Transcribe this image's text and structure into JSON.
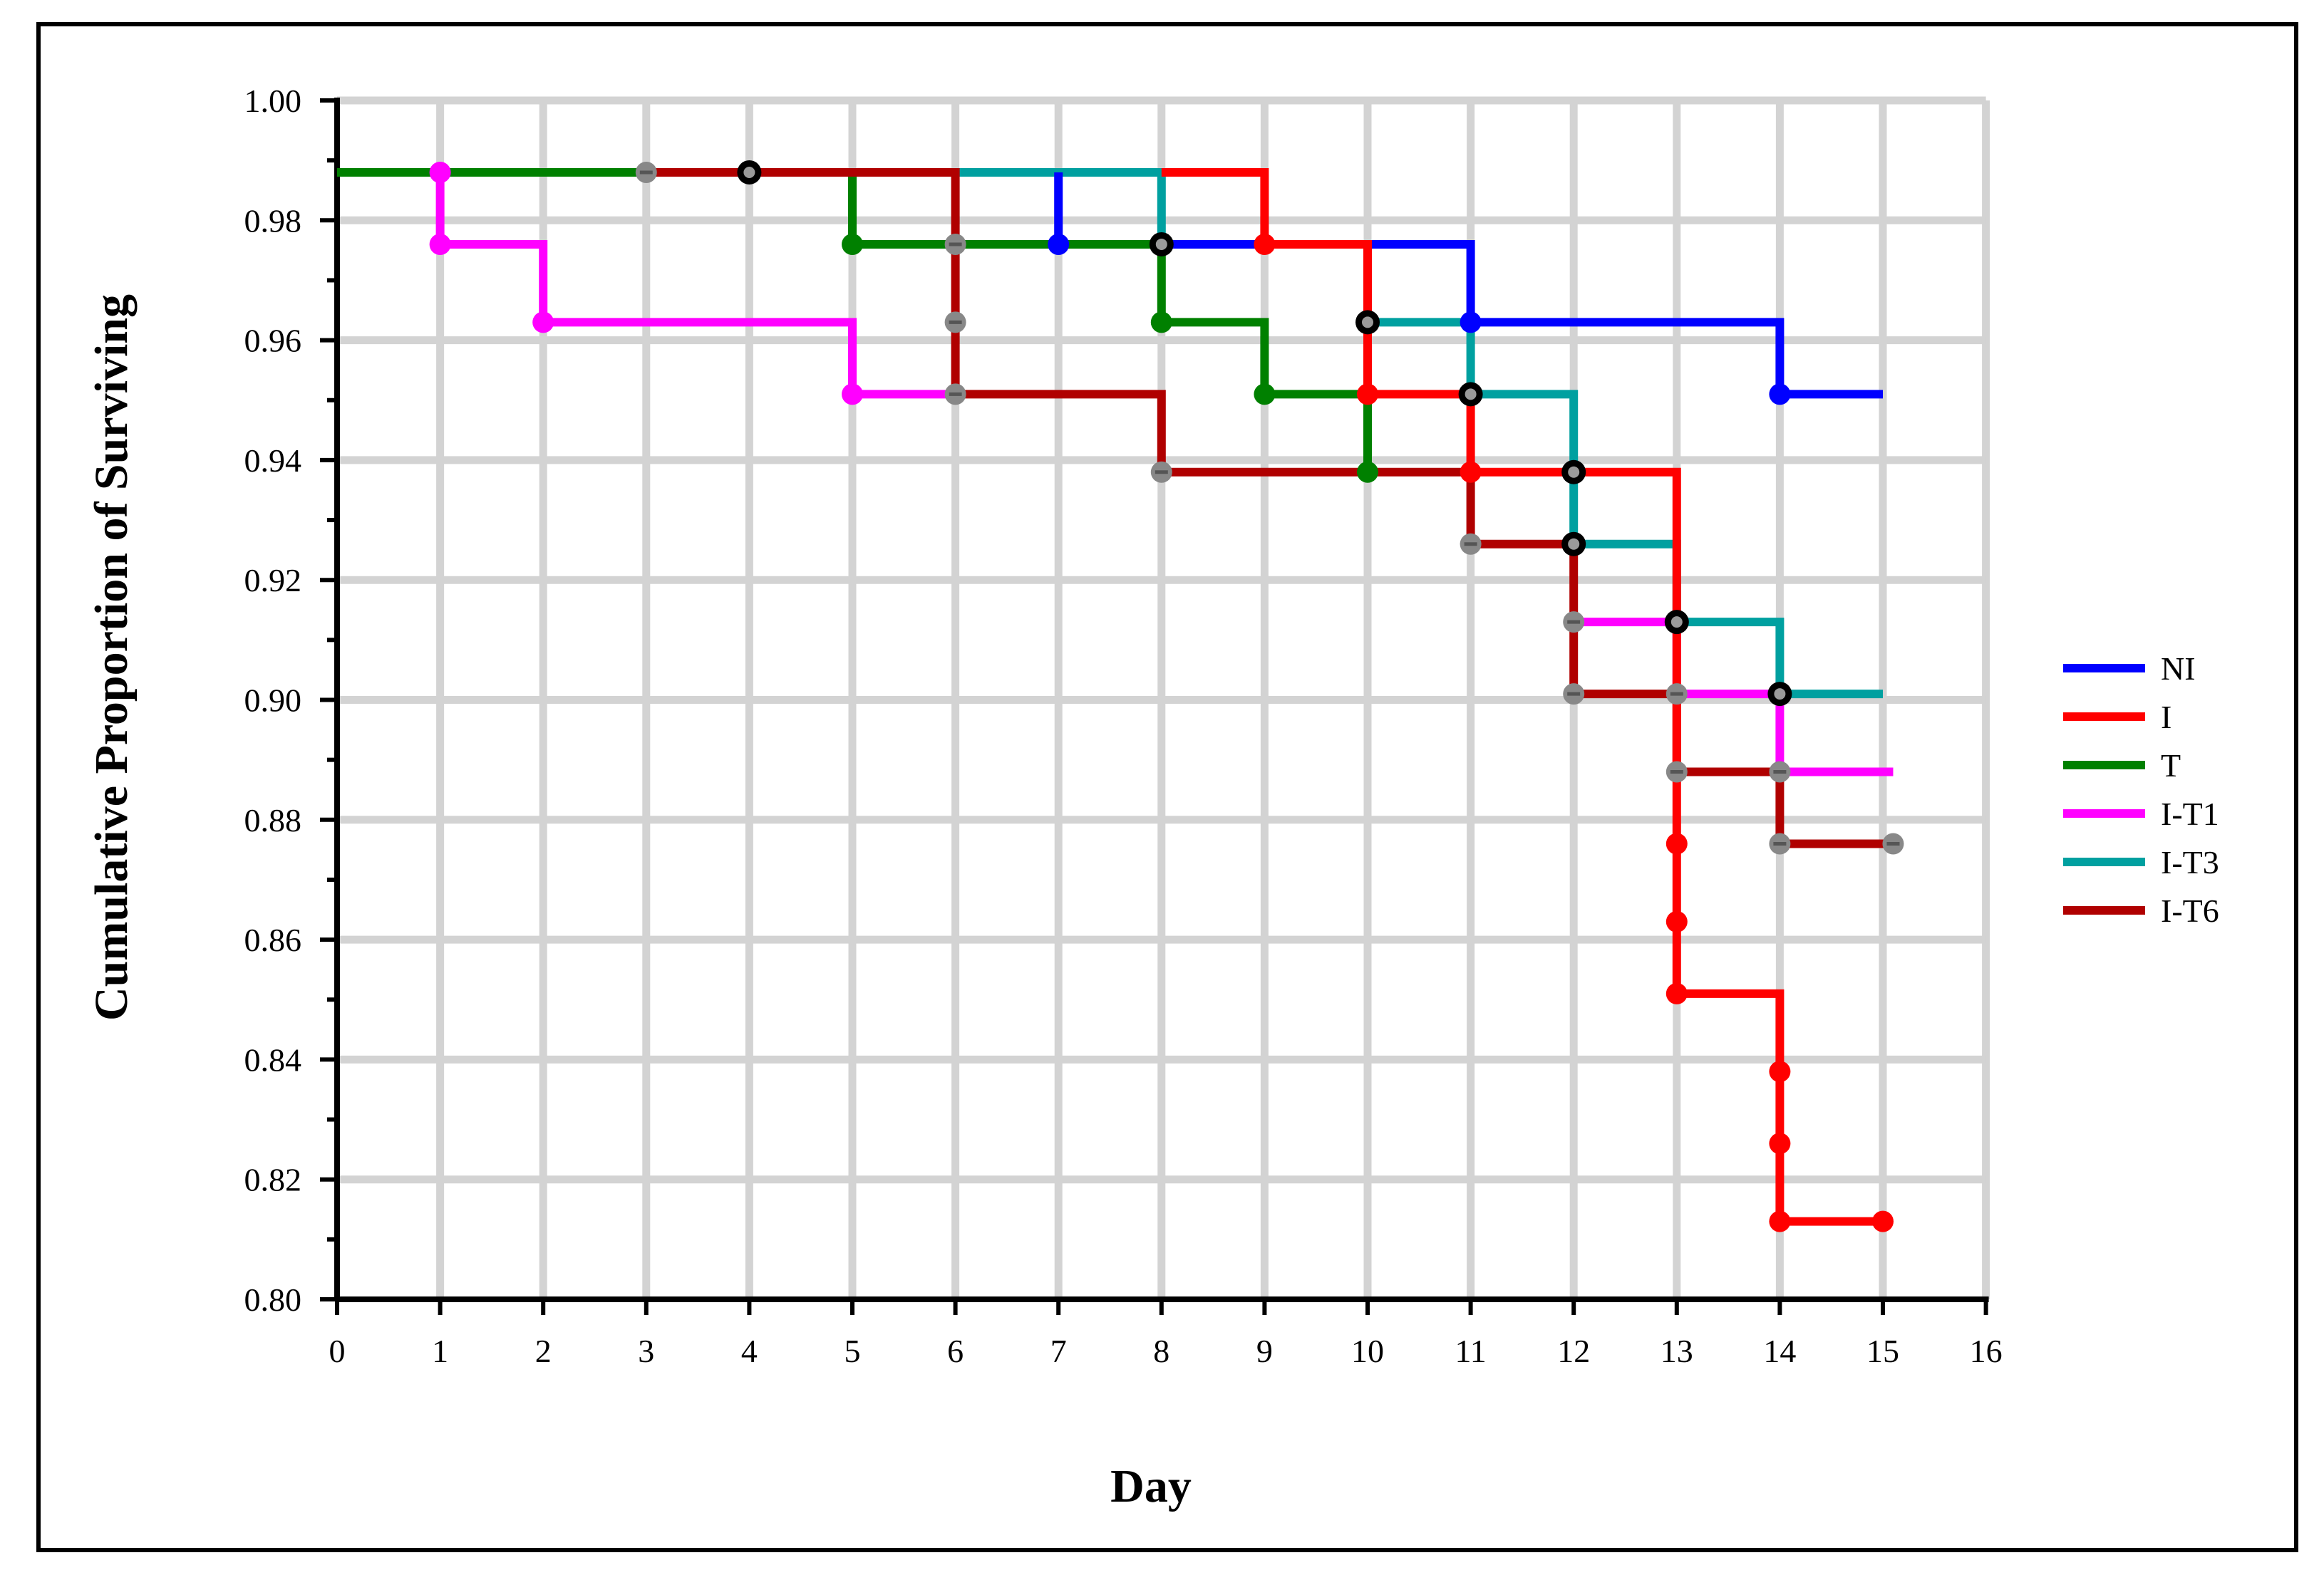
{
  "chart_data": {
    "type": "line",
    "subtype": "step (Kaplan-Meier survival)",
    "title": "",
    "xlabel": "Day",
    "ylabel": "Cumulative Proportion of Surviving",
    "xlim": [
      0,
      16
    ],
    "ylim": [
      0.8,
      1.0
    ],
    "x_ticks": [
      0,
      1,
      2,
      3,
      4,
      5,
      6,
      7,
      8,
      9,
      10,
      11,
      12,
      13,
      14,
      15,
      16
    ],
    "y_ticks": [
      "0.80",
      "0.82",
      "0.84",
      "0.86",
      "0.88",
      "0.90",
      "0.92",
      "0.94",
      "0.96",
      "0.98",
      "1.00"
    ],
    "grid": true,
    "legend_position": "right",
    "series": [
      {
        "name": "NI",
        "color": "#0000ff",
        "steps": [
          [
            7,
            0.988
          ],
          [
            7,
            0.976
          ],
          [
            11,
            0.963
          ],
          [
            14,
            0.951
          ],
          [
            15,
            0.951
          ]
        ],
        "markers": [
          [
            7,
            0.976
          ],
          [
            11,
            0.963
          ],
          [
            14,
            0.951
          ]
        ]
      },
      {
        "name": "I",
        "color": "#ff0000",
        "steps": [
          [
            8,
            0.988
          ],
          [
            9,
            0.976
          ],
          [
            10,
            0.951
          ],
          [
            11,
            0.938
          ],
          [
            13,
            0.851
          ],
          [
            14,
            0.813
          ],
          [
            15,
            0.813
          ]
        ],
        "markers": [
          [
            9,
            0.976
          ],
          [
            10,
            0.951
          ],
          [
            11,
            0.938
          ],
          [
            13,
            0.876
          ],
          [
            13,
            0.863
          ],
          [
            13,
            0.851
          ],
          [
            14,
            0.838
          ],
          [
            14,
            0.826
          ],
          [
            14,
            0.813
          ],
          [
            15,
            0.813
          ]
        ]
      },
      {
        "name": "T",
        "color": "#008000",
        "steps": [
          [
            0,
            0.988
          ],
          [
            5,
            0.976
          ],
          [
            8,
            0.963
          ],
          [
            9,
            0.951
          ],
          [
            10,
            0.938
          ]
        ],
        "markers": [
          [
            5,
            0.976
          ],
          [
            8,
            0.963
          ],
          [
            9,
            0.951
          ],
          [
            10,
            0.938
          ]
        ]
      },
      {
        "name": "I-T1",
        "color": "#ff00ff",
        "steps": [
          [
            1,
            0.988
          ],
          [
            1,
            0.976
          ],
          [
            2,
            0.963
          ],
          [
            5,
            0.951
          ],
          [
            6,
            0.951
          ]
        ],
        "segments": [
          [
            12,
            0.913
          ],
          [
            13,
            0.901
          ],
          [
            14,
            0.888
          ],
          [
            15.1,
            0.888
          ]
        ],
        "markers": [
          [
            1,
            0.988
          ],
          [
            1,
            0.976
          ],
          [
            2,
            0.963
          ],
          [
            5,
            0.951
          ]
        ]
      },
      {
        "name": "I-T3",
        "color": "#00a0a0",
        "steps": [
          [
            6,
            0.988
          ],
          [
            8,
            0.976
          ],
          [
            10,
            0.963
          ],
          [
            11,
            0.951
          ],
          [
            12,
            0.926
          ],
          [
            13,
            0.913
          ],
          [
            14,
            0.901
          ],
          [
            15,
            0.901
          ]
        ],
        "markers": []
      },
      {
        "name": "I-T6",
        "color": "#b00000",
        "steps": [
          [
            3,
            0.988
          ],
          [
            6,
            0.951
          ],
          [
            8,
            0.938
          ],
          [
            11,
            0.926
          ],
          [
            12,
            0.901
          ],
          [
            13,
            0.888
          ],
          [
            14,
            0.876
          ],
          [
            15.1,
            0.876
          ]
        ],
        "markers": []
      }
    ],
    "censor_markers": {
      "black": [
        [
          4,
          0.988
        ],
        [
          8,
          0.976
        ],
        [
          10,
          0.963
        ],
        [
          11,
          0.951
        ],
        [
          12,
          0.938
        ],
        [
          12,
          0.926
        ],
        [
          13,
          0.913
        ],
        [
          14,
          0.901
        ]
      ],
      "gray": [
        [
          3,
          0.988
        ],
        [
          6,
          0.976
        ],
        [
          6,
          0.963
        ],
        [
          6,
          0.951
        ],
        [
          8,
          0.938
        ],
        [
          11,
          0.926
        ],
        [
          12,
          0.913
        ],
        [
          12,
          0.901
        ],
        [
          13,
          0.901
        ],
        [
          13,
          0.888
        ],
        [
          14,
          0.888
        ],
        [
          14,
          0.876
        ],
        [
          15.1,
          0.876
        ]
      ]
    }
  }
}
